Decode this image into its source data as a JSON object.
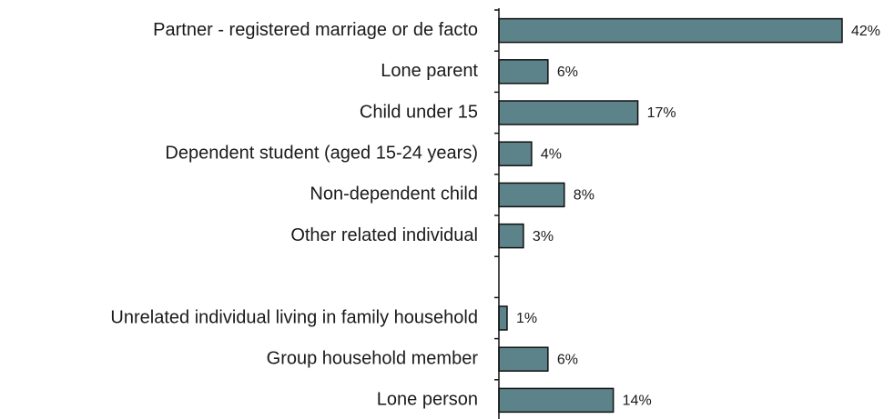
{
  "chart_data": {
    "type": "bar",
    "orientation": "horizontal",
    "categories": [
      "Partner - registered marriage or de facto",
      "Lone parent",
      "Child under 15",
      "Dependent student (aged 15-24 years)",
      "Non-dependent child",
      "Other related individual",
      null,
      "Unrelated individual living in family household",
      "Group household member",
      "Lone person"
    ],
    "values": [
      42,
      6,
      17,
      4,
      8,
      3,
      null,
      1,
      6,
      14
    ],
    "value_labels": [
      "42%",
      "6%",
      "17%",
      "4%",
      "8%",
      "3%",
      null,
      "1%",
      "6%",
      "14%"
    ],
    "color": "#5b8389"
  }
}
